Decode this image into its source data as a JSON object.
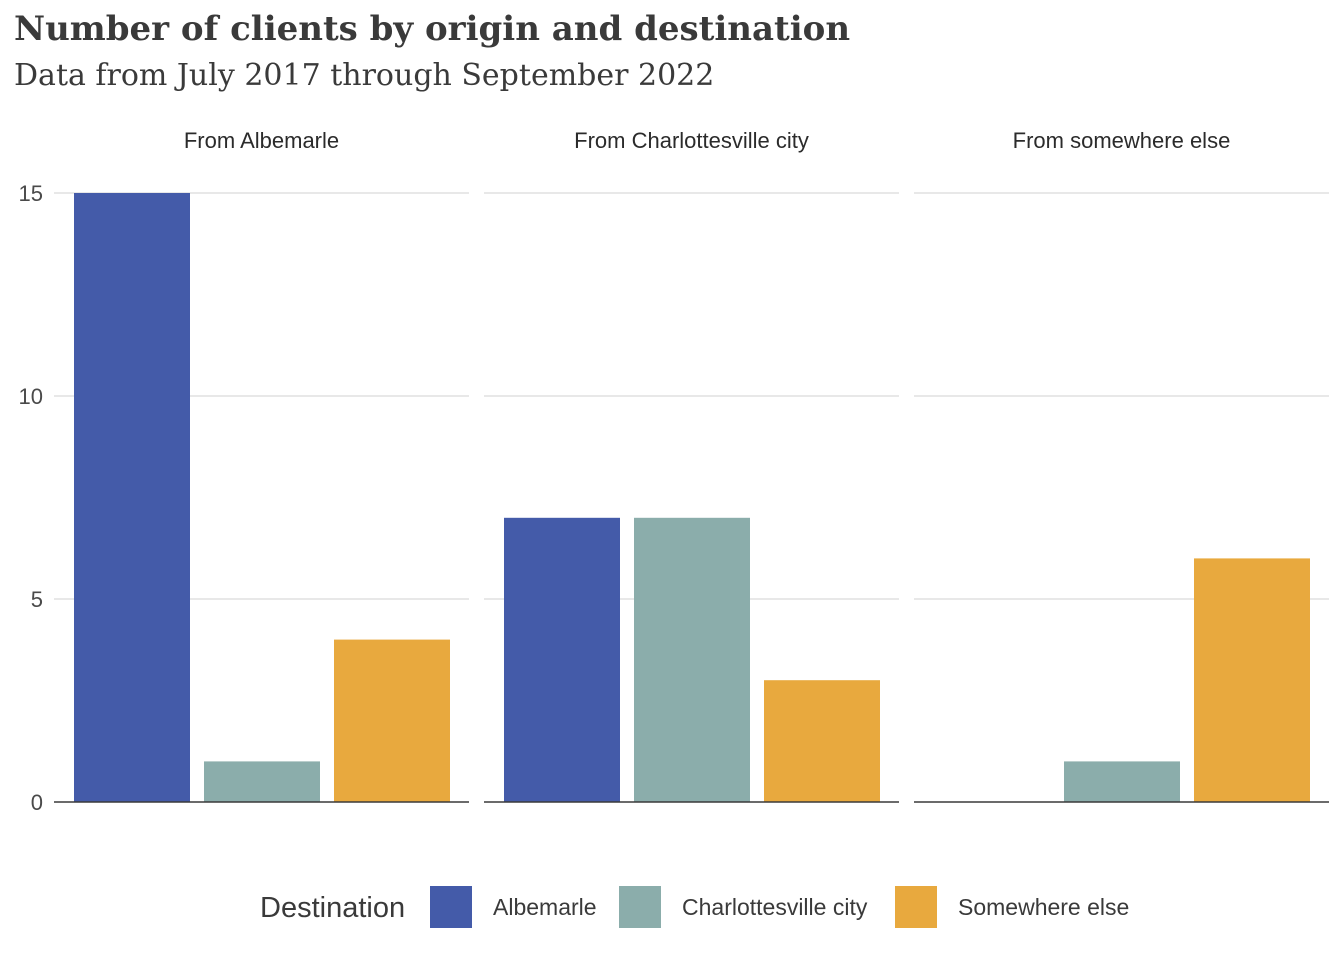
{
  "chart_data": {
    "type": "bar",
    "title": "Number of clients by origin and destination",
    "subtitle": "Data from July 2017 through September 2022",
    "ylim": [
      0,
      15
    ],
    "y_ticks": [
      0,
      5,
      10,
      15
    ],
    "grid": true,
    "legend_position": "bottom",
    "legend_title": "Destination",
    "categories": [
      "Albemarle",
      "Charlottesville city",
      "Somewhere else"
    ],
    "colors": {
      "Albemarle": "#445BA9",
      "Charlottesville city": "#8BADAB",
      "Somewhere else": "#E8A93E"
    },
    "facets": [
      {
        "label": "From Albemarle",
        "values": [
          15,
          1,
          4
        ]
      },
      {
        "label": "From Charlottesville city",
        "values": [
          7,
          7,
          3
        ]
      },
      {
        "label": "From somewhere else",
        "values": [
          0,
          1,
          6
        ]
      }
    ]
  }
}
